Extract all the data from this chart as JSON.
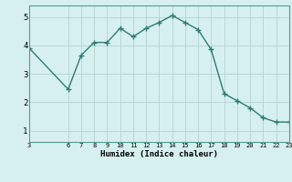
{
  "x": [
    3,
    6,
    7,
    8,
    9,
    10,
    11,
    12,
    13,
    14,
    15,
    16,
    17,
    18,
    19,
    20,
    21,
    22,
    23
  ],
  "y": [
    3.9,
    2.45,
    3.65,
    4.1,
    4.1,
    4.6,
    4.3,
    4.6,
    4.8,
    5.05,
    4.8,
    4.55,
    3.85,
    2.3,
    2.05,
    1.8,
    1.45,
    1.3,
    1.3
  ],
  "line_color": "#2d7d6e",
  "bg_color": "#d6f0ef",
  "grid_color": "#b8d8d4",
  "axis_color": "#5a9a8a",
  "xlabel": "Humidex (Indice chaleur)",
  "xlim": [
    3,
    23
  ],
  "ylim": [
    0.6,
    5.4
  ],
  "xticks": [
    3,
    6,
    7,
    8,
    9,
    10,
    11,
    12,
    13,
    14,
    15,
    16,
    17,
    18,
    19,
    20,
    21,
    22,
    23
  ],
  "yticks": [
    1,
    2,
    3,
    4,
    5
  ],
  "marker": "+",
  "markersize": 4,
  "linewidth": 1.0
}
